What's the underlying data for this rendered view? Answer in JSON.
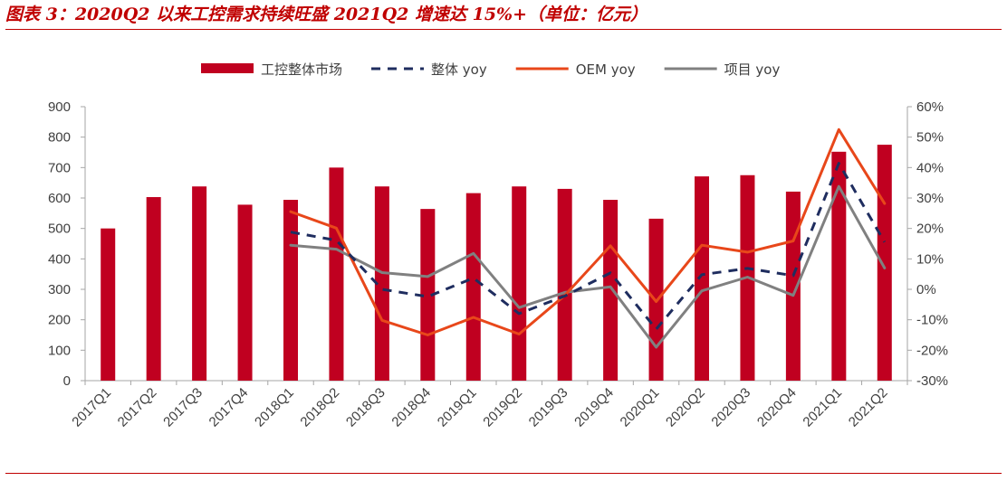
{
  "title": "图表 3：2020Q2 以来工控需求持续旺盛 2021Q2 增速达 15%+（单位：亿元）",
  "colors": {
    "bar": "#c00020",
    "overall_yoy": "#1f2d5f",
    "oem_yoy": "#e8471a",
    "project_yoy": "#808080",
    "axis": "#a6a6a6",
    "rule": "#c00000"
  },
  "chart_data": {
    "type": "bar+line",
    "title": "",
    "xlabel": "",
    "ylabel": "",
    "legend_position": "top",
    "grid": false,
    "categories": [
      "2017Q1",
      "2017Q2",
      "2017Q3",
      "2017Q4",
      "2018Q1",
      "2018Q2",
      "2018Q3",
      "2018Q4",
      "2019Q1",
      "2019Q2",
      "2019Q3",
      "2019Q4",
      "2020Q1",
      "2020Q2",
      "2020Q3",
      "2020Q4",
      "2021Q1",
      "2021Q2"
    ],
    "y_left": {
      "min": 0,
      "max": 900,
      "step": 100,
      "ticks": [
        "0",
        "100",
        "200",
        "300",
        "400",
        "500",
        "600",
        "700",
        "800",
        "900"
      ]
    },
    "y_right": {
      "min": -30,
      "max": 60,
      "step": 10,
      "ticks": [
        "-30%",
        "-20%",
        "-10%",
        "0%",
        "10%",
        "20%",
        "30%",
        "40%",
        "50%",
        "60%"
      ]
    },
    "series": [
      {
        "name": "工控整体市场",
        "kind": "bar",
        "axis": "left",
        "values": [
          500,
          603,
          638,
          578,
          594,
          700,
          638,
          564,
          616,
          638,
          630,
          594,
          532,
          671,
          675,
          621,
          752,
          775
        ]
      },
      {
        "name": "整体 yoy",
        "kind": "line",
        "style": "dashed",
        "axis": "right",
        "values": [
          null,
          null,
          null,
          null,
          18.8,
          16.1,
          0.0,
          -2.4,
          3.7,
          -8.0,
          -2.2,
          5.4,
          -13.1,
          4.8,
          6.9,
          4.5,
          41.4,
          15.5
        ]
      },
      {
        "name": "OEM yoy",
        "kind": "line",
        "style": "solid",
        "axis": "right",
        "values": [
          null,
          null,
          null,
          null,
          25.5,
          20.1,
          -10.2,
          -15.0,
          -9.2,
          -14.7,
          -2.0,
          14.3,
          -4.0,
          14.5,
          12.2,
          15.9,
          52.5,
          28.2
        ]
      },
      {
        "name": "项目 yoy",
        "kind": "line",
        "style": "solid",
        "axis": "right",
        "values": [
          null,
          null,
          null,
          null,
          14.5,
          13.2,
          5.5,
          4.2,
          11.8,
          -6.0,
          -1.0,
          0.8,
          -19.0,
          -0.5,
          4.0,
          -2.0,
          33.8,
          7.0
        ]
      }
    ]
  }
}
